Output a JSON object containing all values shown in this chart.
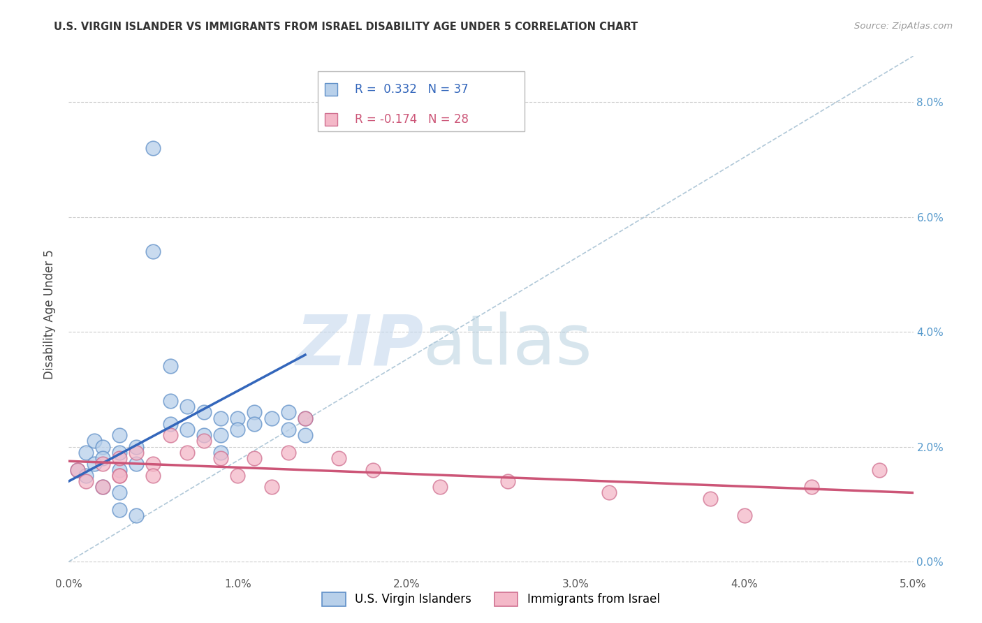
{
  "title": "U.S. VIRGIN ISLANDER VS IMMIGRANTS FROM ISRAEL DISABILITY AGE UNDER 5 CORRELATION CHART",
  "source": "Source: ZipAtlas.com",
  "ylabel": "Disability Age Under 5",
  "xlim": [
    0.0,
    0.05
  ],
  "ylim": [
    -0.002,
    0.088
  ],
  "R_blue": 0.332,
  "N_blue": 37,
  "R_pink": -0.174,
  "N_pink": 28,
  "blue_scatter_x": [
    0.0005,
    0.001,
    0.001,
    0.0015,
    0.0015,
    0.002,
    0.002,
    0.002,
    0.003,
    0.003,
    0.003,
    0.003,
    0.004,
    0.004,
    0.005,
    0.005,
    0.006,
    0.006,
    0.006,
    0.007,
    0.007,
    0.008,
    0.008,
    0.009,
    0.009,
    0.009,
    0.01,
    0.01,
    0.011,
    0.011,
    0.012,
    0.013,
    0.013,
    0.014,
    0.014,
    0.003,
    0.004
  ],
  "blue_scatter_y": [
    0.016,
    0.019,
    0.015,
    0.021,
    0.017,
    0.02,
    0.018,
    0.013,
    0.022,
    0.019,
    0.016,
    0.012,
    0.02,
    0.017,
    0.072,
    0.054,
    0.034,
    0.028,
    0.024,
    0.027,
    0.023,
    0.026,
    0.022,
    0.025,
    0.022,
    0.019,
    0.025,
    0.023,
    0.026,
    0.024,
    0.025,
    0.026,
    0.023,
    0.025,
    0.022,
    0.009,
    0.008
  ],
  "pink_scatter_x": [
    0.0005,
    0.001,
    0.002,
    0.002,
    0.003,
    0.003,
    0.004,
    0.005,
    0.005,
    0.006,
    0.007,
    0.008,
    0.009,
    0.01,
    0.011,
    0.012,
    0.013,
    0.014,
    0.016,
    0.018,
    0.022,
    0.026,
    0.032,
    0.038,
    0.04,
    0.044,
    0.048,
    0.003
  ],
  "pink_scatter_y": [
    0.016,
    0.014,
    0.017,
    0.013,
    0.018,
    0.015,
    0.019,
    0.017,
    0.015,
    0.022,
    0.019,
    0.021,
    0.018,
    0.015,
    0.018,
    0.013,
    0.019,
    0.025,
    0.018,
    0.016,
    0.013,
    0.014,
    0.012,
    0.011,
    0.008,
    0.013,
    0.016,
    0.015
  ],
  "blue_line_x": [
    0.0,
    0.014
  ],
  "blue_line_y": [
    0.014,
    0.036
  ],
  "pink_line_x": [
    0.0,
    0.05
  ],
  "pink_line_y": [
    0.0175,
    0.012
  ],
  "diag_line_x": [
    0.0,
    0.05
  ],
  "diag_line_y": [
    0.0,
    0.088
  ],
  "blue_color": "#b8d0ea",
  "blue_edge_color": "#6090c8",
  "blue_line_color": "#3366bb",
  "pink_color": "#f4b8c8",
  "pink_edge_color": "#d07090",
  "pink_line_color": "#cc5577",
  "diag_color": "#b0c8d8",
  "watermark_zip": "ZIP",
  "watermark_atlas": "atlas",
  "legend_label_blue": "U.S. Virgin Islanders",
  "legend_label_pink": "Immigrants from Israel",
  "background_color": "#ffffff",
  "grid_color": "#cccccc",
  "right_tick_color": "#5599cc",
  "title_color": "#333333",
  "source_color": "#999999"
}
